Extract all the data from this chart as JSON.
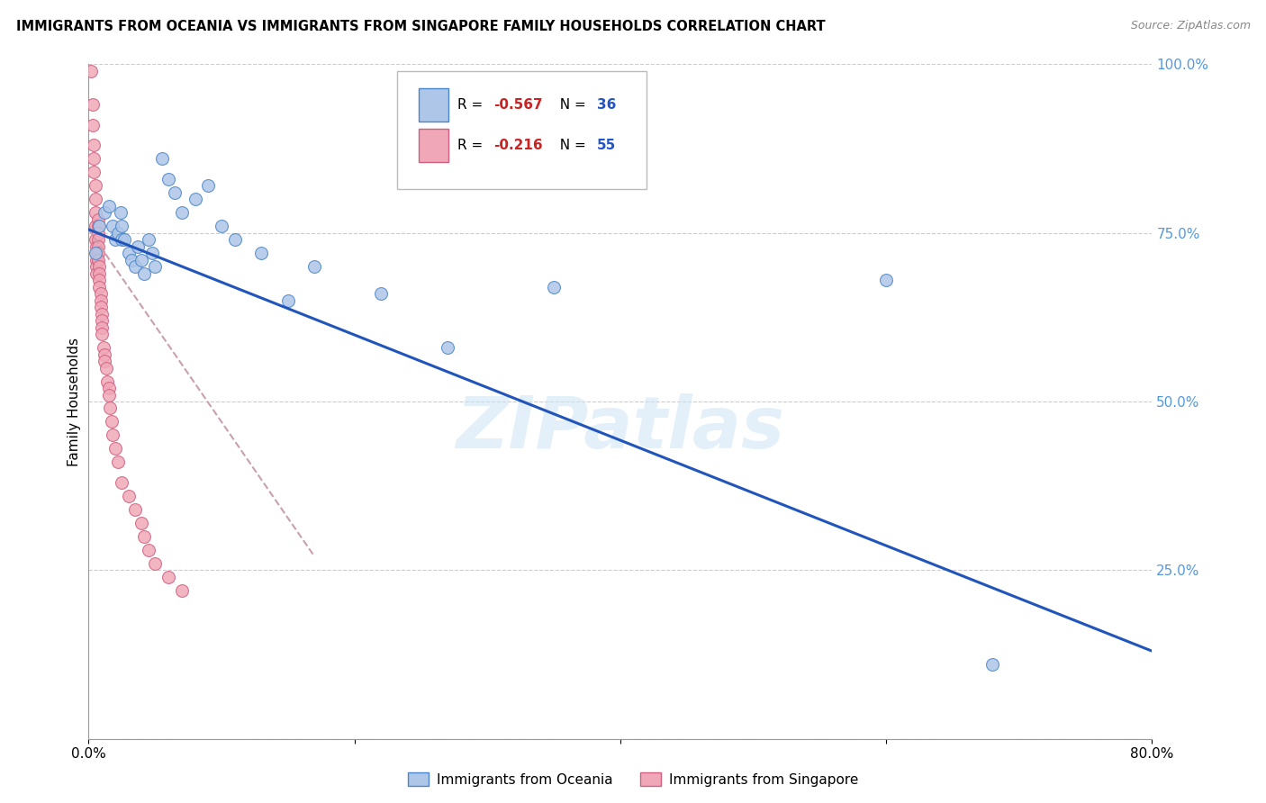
{
  "title": "IMMIGRANTS FROM OCEANIA VS IMMIGRANTS FROM SINGAPORE FAMILY HOUSEHOLDS CORRELATION CHART",
  "source": "Source: ZipAtlas.com",
  "ylabel": "Family Households",
  "legend_blue_label": "Immigrants from Oceania",
  "legend_pink_label": "Immigrants from Singapore",
  "watermark": "ZIPatlas",
  "xlim": [
    0.0,
    0.8
  ],
  "ylim": [
    0.0,
    1.0
  ],
  "x_ticks": [
    0.0,
    0.2,
    0.4,
    0.6,
    0.8
  ],
  "x_tick_labels": [
    "0.0%",
    "",
    "",
    "",
    "80.0%"
  ],
  "y_ticks_right": [
    0.0,
    0.25,
    0.5,
    0.75,
    1.0
  ],
  "y_tick_labels_right": [
    "",
    "25.0%",
    "50.0%",
    "75.0%",
    "100.0%"
  ],
  "blue_fill": "#aec6e8",
  "blue_edge": "#4a86c8",
  "pink_fill": "#f0a8b8",
  "pink_edge": "#d06080",
  "blue_line_color": "#2255bb",
  "pink_dash_color": "#c8a0b0",
  "grid_color": "#cccccc",
  "background_color": "#ffffff",
  "blue_scatter_x": [
    0.005,
    0.008,
    0.012,
    0.015,
    0.018,
    0.02,
    0.022,
    0.024,
    0.025,
    0.025,
    0.027,
    0.03,
    0.032,
    0.035,
    0.037,
    0.04,
    0.042,
    0.045,
    0.048,
    0.05,
    0.055,
    0.06,
    0.065,
    0.07,
    0.08,
    0.09,
    0.1,
    0.11,
    0.13,
    0.15,
    0.17,
    0.22,
    0.27,
    0.35,
    0.6,
    0.68
  ],
  "blue_scatter_y": [
    0.72,
    0.76,
    0.78,
    0.79,
    0.76,
    0.74,
    0.75,
    0.78,
    0.76,
    0.74,
    0.74,
    0.72,
    0.71,
    0.7,
    0.73,
    0.71,
    0.69,
    0.74,
    0.72,
    0.7,
    0.86,
    0.83,
    0.81,
    0.78,
    0.8,
    0.82,
    0.76,
    0.74,
    0.72,
    0.65,
    0.7,
    0.66,
    0.58,
    0.67,
    0.68,
    0.11
  ],
  "blue_line_x": [
    0.0,
    0.8
  ],
  "blue_line_y": [
    0.755,
    0.13
  ],
  "pink_scatter_x": [
    0.002,
    0.003,
    0.003,
    0.004,
    0.004,
    0.004,
    0.005,
    0.005,
    0.005,
    0.005,
    0.005,
    0.006,
    0.006,
    0.006,
    0.006,
    0.006,
    0.007,
    0.007,
    0.007,
    0.007,
    0.007,
    0.007,
    0.007,
    0.008,
    0.008,
    0.008,
    0.008,
    0.009,
    0.009,
    0.009,
    0.01,
    0.01,
    0.01,
    0.01,
    0.011,
    0.012,
    0.012,
    0.013,
    0.014,
    0.015,
    0.015,
    0.016,
    0.017,
    0.018,
    0.02,
    0.022,
    0.025,
    0.03,
    0.035,
    0.04,
    0.042,
    0.045,
    0.05,
    0.06,
    0.07
  ],
  "pink_scatter_y": [
    0.99,
    0.94,
    0.91,
    0.88,
    0.86,
    0.84,
    0.82,
    0.8,
    0.78,
    0.76,
    0.74,
    0.73,
    0.72,
    0.71,
    0.7,
    0.69,
    0.77,
    0.76,
    0.75,
    0.74,
    0.73,
    0.72,
    0.71,
    0.7,
    0.69,
    0.68,
    0.67,
    0.66,
    0.65,
    0.64,
    0.63,
    0.62,
    0.61,
    0.6,
    0.58,
    0.57,
    0.56,
    0.55,
    0.53,
    0.52,
    0.51,
    0.49,
    0.47,
    0.45,
    0.43,
    0.41,
    0.38,
    0.36,
    0.34,
    0.32,
    0.3,
    0.28,
    0.26,
    0.24,
    0.22
  ],
  "pink_line_x": [
    0.0,
    0.17
  ],
  "pink_line_y": [
    0.755,
    0.27
  ]
}
